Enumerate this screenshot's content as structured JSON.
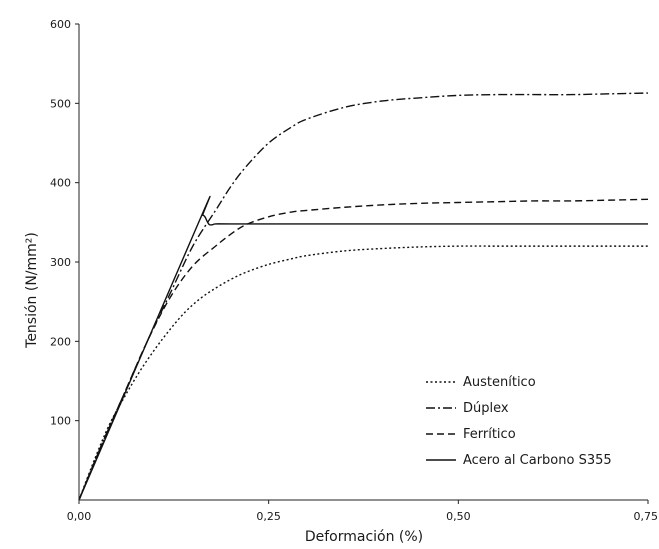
{
  "chart_data": {
    "type": "line",
    "title": "",
    "xlabel": "Deformación (%)",
    "ylabel": "Tensión (N/mm²)",
    "xlim": [
      0,
      0.75
    ],
    "ylim": [
      0,
      600
    ],
    "x_ticks": [
      {
        "value": 0,
        "label": "0,00"
      },
      {
        "value": 0.25,
        "label": "0,25"
      },
      {
        "value": 0.5,
        "label": "0,50"
      },
      {
        "value": 0.75,
        "label": "0,75"
      }
    ],
    "y_ticks": [
      {
        "value": 100,
        "label": "100"
      },
      {
        "value": 200,
        "label": "200"
      },
      {
        "value": 300,
        "label": "300"
      },
      {
        "value": 400,
        "label": "400"
      },
      {
        "value": 500,
        "label": "500"
      },
      {
        "value": 600,
        "label": "600"
      }
    ],
    "grid": false,
    "legend_position": "bottom-right",
    "series": [
      {
        "name": "Austenítico",
        "dash": "2,2.5",
        "x": [
          0,
          0.02,
          0.04,
          0.06,
          0.08,
          0.1,
          0.12,
          0.14,
          0.16,
          0.18,
          0.2,
          0.22,
          0.25,
          0.28,
          0.3,
          0.35,
          0.4,
          0.45,
          0.5,
          0.55,
          0.6,
          0.65,
          0.7,
          0.75
        ],
        "y": [
          0,
          50,
          95,
          130,
          162,
          190,
          215,
          237,
          254,
          267,
          278,
          287,
          297,
          304,
          308,
          314,
          317,
          319,
          320,
          320,
          320,
          320,
          320,
          320
        ]
      },
      {
        "name": "Dúplex",
        "dash": "9,3,2,3",
        "x": [
          0,
          0.03,
          0.06,
          0.09,
          0.12,
          0.15,
          0.18,
          0.2,
          0.22,
          0.25,
          0.28,
          0.3,
          0.35,
          0.4,
          0.45,
          0.5,
          0.55,
          0.6,
          0.65,
          0.7,
          0.75
        ],
        "y": [
          0,
          70,
          135,
          200,
          260,
          320,
          365,
          395,
          420,
          450,
          470,
          480,
          495,
          503,
          507,
          510,
          511,
          511,
          511,
          512,
          513
        ]
      },
      {
        "name": "Ferrítico",
        "dash": "7,4",
        "x": [
          0,
          0.03,
          0.06,
          0.09,
          0.12,
          0.15,
          0.18,
          0.2,
          0.22,
          0.25,
          0.28,
          0.3,
          0.35,
          0.4,
          0.45,
          0.5,
          0.55,
          0.6,
          0.65,
          0.7,
          0.75
        ],
        "y": [
          0,
          70,
          135,
          200,
          255,
          295,
          320,
          335,
          347,
          357,
          363,
          365,
          369,
          372,
          374,
          375,
          376,
          377,
          377,
          378,
          379
        ]
      },
      {
        "name": "Acero al Carbono S355",
        "dash": "",
        "x": [
          0,
          0.16,
          0.163,
          0.166,
          0.169,
          0.172,
          0.176,
          0.18,
          0.2,
          0.3,
          0.4,
          0.5,
          0.6,
          0.7,
          0.75
        ],
        "y": [
          0,
          355,
          359,
          357,
          351,
          347,
          347,
          348,
          348,
          348,
          348,
          348,
          348,
          348,
          348
        ]
      }
    ]
  }
}
